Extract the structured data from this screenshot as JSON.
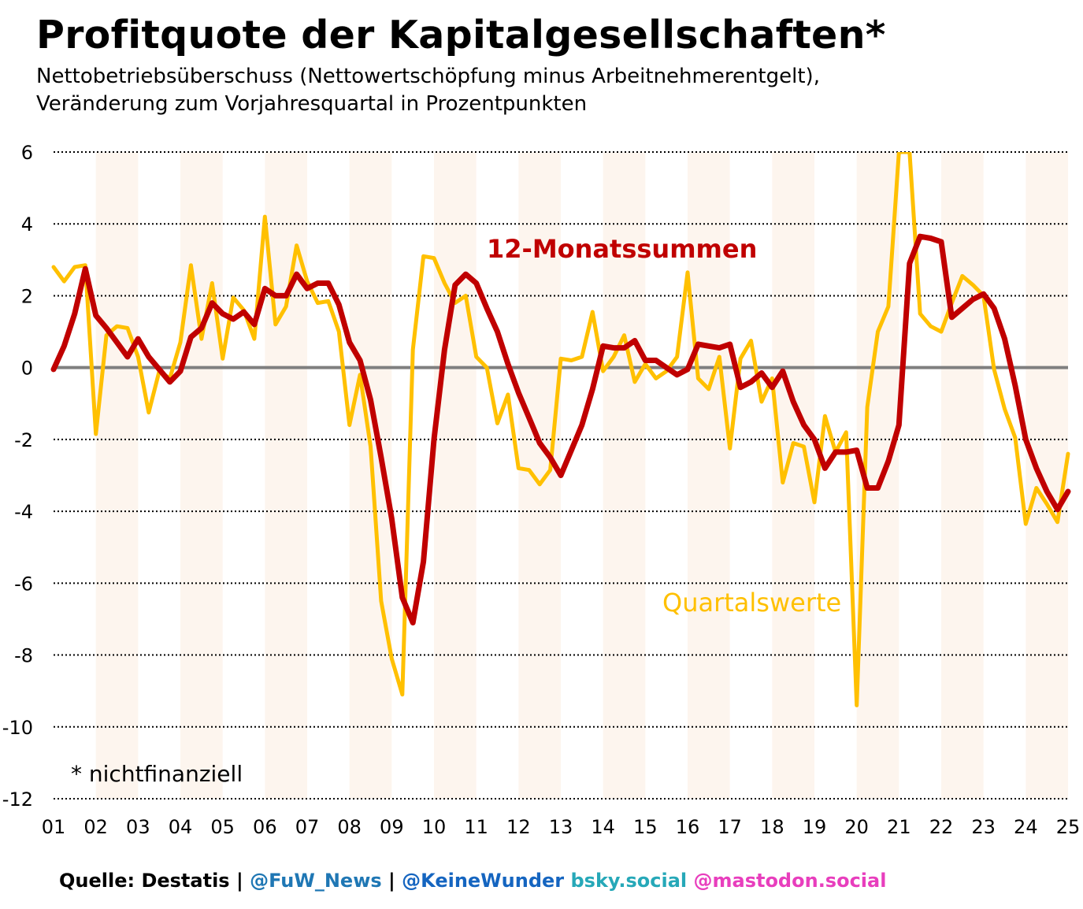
{
  "title": "Profitquote der Kapitalgesellschaften*",
  "subtitle": {
    "line1": "Nettobetriebsüberschuss (Nettowertschöpfung minus Arbeitnehmerentgelt),",
    "line2": "Veränderung zum Vorjahresquartal in Prozentpunkten"
  },
  "footnote": "* nichtfinanziell",
  "labels": {
    "annual": "12-Monatssummen",
    "quarterly": "Quartalswerte"
  },
  "footer": {
    "source": "Quelle: Destatis",
    "sep1": " | ",
    "fuw": "@FuW_News",
    "sep2": " | ",
    "keinewunder": "@KeineWunder",
    "space": " ",
    "bsky": "bsky.social",
    "mastodon": "@mastodon.social"
  },
  "colors": {
    "annual": "#c00000",
    "quarterly": "#ffc000",
    "band": "#fdf5ee",
    "zero": "#7f7f7f",
    "fuw": "#1f77b4",
    "keinewunder": "#1565c0",
    "bsky": "#26a8b8",
    "mastodon": "#e83ebd"
  },
  "chart_data": {
    "type": "line",
    "ylim": [
      -12,
      6
    ],
    "yticks": [
      6,
      4,
      2,
      0,
      -2,
      -4,
      -6,
      -8,
      -10,
      -12
    ],
    "xlim": [
      2001,
      2025
    ],
    "xticks": [
      "01",
      "02",
      "03",
      "04",
      "05",
      "06",
      "07",
      "08",
      "09",
      "10",
      "11",
      "12",
      "13",
      "14",
      "15",
      "16",
      "17",
      "18",
      "19",
      "20",
      "21",
      "22",
      "23",
      "24",
      "25"
    ],
    "grid": true,
    "series": [
      {
        "name": "Quartalswerte",
        "start": 2001,
        "step": 0.25,
        "values": [
          2.8,
          2.4,
          2.8,
          2.85,
          -1.85,
          0.9,
          1.15,
          1.1,
          0.3,
          -1.25,
          -0.1,
          -0.3,
          0.7,
          2.85,
          0.8,
          2.35,
          0.25,
          1.95,
          1.6,
          0.8,
          4.2,
          1.2,
          1.7,
          3.4,
          2.4,
          1.8,
          1.85,
          1.0,
          -1.6,
          -0.2,
          -2.2,
          -6.5,
          -8.1,
          -9.1,
          0.5,
          3.1,
          3.05,
          2.35,
          1.8,
          2.0,
          0.3,
          0.0,
          -1.55,
          -0.75,
          -2.8,
          -2.85,
          -3.25,
          -2.85,
          0.25,
          0.2,
          0.3,
          1.55,
          -0.1,
          0.3,
          0.9,
          -0.4,
          0.1,
          -0.3,
          -0.1,
          0.3,
          2.65,
          -0.3,
          -0.6,
          0.3,
          -2.25,
          0.25,
          0.75,
          -0.95,
          -0.3,
          -3.2,
          -2.1,
          -2.2,
          -3.75,
          -1.35,
          -2.35,
          -1.8,
          -9.4,
          -1.1,
          1.0,
          1.7,
          6.0,
          6.0,
          1.5,
          1.15,
          1.0,
          1.8,
          2.55,
          2.3,
          2.0,
          -0.05,
          -1.15,
          -1.95,
          -4.35,
          -3.35,
          -3.8,
          -4.3,
          -2.4
        ]
      },
      {
        "name": "12-Monatssummen",
        "start": 2001,
        "step": 0.25,
        "values": [
          -0.05,
          0.6,
          1.5,
          2.75,
          1.45,
          1.1,
          0.7,
          0.3,
          0.8,
          0.3,
          -0.05,
          -0.4,
          -0.1,
          0.85,
          1.1,
          1.8,
          1.5,
          1.35,
          1.55,
          1.2,
          2.2,
          2.0,
          2.0,
          2.6,
          2.2,
          2.35,
          2.35,
          1.75,
          0.7,
          0.2,
          -0.9,
          -2.5,
          -4.2,
          -6.4,
          -7.1,
          -5.4,
          -2.0,
          0.5,
          2.3,
          2.6,
          2.35,
          1.65,
          1.0,
          0.1,
          -0.7,
          -1.4,
          -2.1,
          -2.5,
          -3.0,
          -2.3,
          -1.6,
          -0.6,
          0.6,
          0.55,
          0.55,
          0.75,
          0.2,
          0.2,
          0.0,
          -0.2,
          -0.05,
          0.65,
          0.6,
          0.55,
          0.65,
          -0.55,
          -0.4,
          -0.15,
          -0.55,
          -0.1,
          -0.95,
          -1.6,
          -2.0,
          -2.8,
          -2.35,
          -2.35,
          -2.3,
          -3.35,
          -3.35,
          -2.6,
          -1.6,
          2.9,
          3.65,
          3.6,
          3.5,
          1.4,
          1.65,
          1.9,
          2.05,
          1.65,
          0.8,
          -0.5,
          -2.0,
          -2.8,
          -3.45,
          -3.95,
          -3.45
        ]
      }
    ]
  }
}
